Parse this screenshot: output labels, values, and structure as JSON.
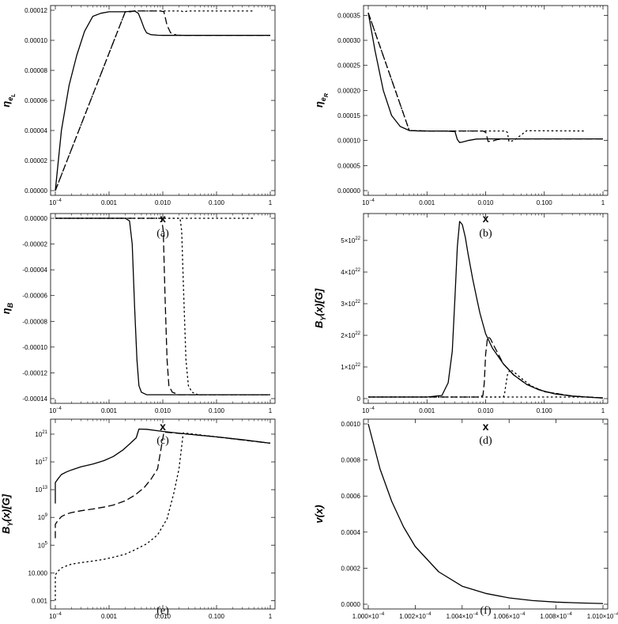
{
  "chart_data": [
    {
      "type": "line",
      "ylabel": "η",
      "ylabel_sub": "e",
      "ylabel_subsub": "L",
      "xlabel": "x",
      "caption": "(a)",
      "xscale": "log",
      "xlim": [
        0.0001,
        1
      ],
      "ylim": [
        0,
        0.00012
      ],
      "xticks": [
        {
          "v": 0.0001,
          "label": "10",
          "sup": "−4"
        },
        {
          "v": 0.001,
          "label": "0.001"
        },
        {
          "v": 0.01,
          "label": "0.010"
        },
        {
          "v": 0.1,
          "label": "0.100"
        },
        {
          "v": 1,
          "label": "1"
        }
      ],
      "yticks": [
        {
          "v": 0,
          "label": "0.00000"
        },
        {
          "v": 2e-05,
          "label": "0.00002"
        },
        {
          "v": 4e-05,
          "label": "0.00004"
        },
        {
          "v": 6e-05,
          "label": "0.00006"
        },
        {
          "v": 8e-05,
          "label": "0.00008"
        },
        {
          "v": 0.0001,
          "label": "0.00010"
        },
        {
          "v": 0.00012,
          "label": "0.00012"
        }
      ],
      "series": [
        {
          "style": "solid",
          "x": [
            0.0001,
            0.00013,
            0.00018,
            0.00025,
            0.00035,
            0.0005,
            0.0007,
            0.001,
            0.002,
            0.003,
            0.0035,
            0.004,
            0.0045,
            0.005,
            0.006,
            0.008,
            0.01,
            0.1,
            1
          ],
          "y": [
            0,
            4e-05,
            7e-05,
            9e-05,
            0.000106,
            0.000116,
            0.000118,
            0.000119,
            0.000119,
            0.0001195,
            0.000118,
            0.000113,
            0.000108,
            0.000105,
            0.0001038,
            0.0001034,
            0.0001033,
            0.0001033,
            0.0001033
          ]
        },
        {
          "style": "dashed",
          "x": [
            0.0001,
            0.002,
            0.0025,
            0.003,
            0.009,
            0.0105,
            0.012,
            0.014,
            0.018,
            0.025,
            0.1,
            1
          ],
          "y": [
            0,
            0.000119,
            0.000119,
            0.0001195,
            0.0001195,
            0.000119,
            0.00011,
            0.000105,
            0.0001035,
            0.0001033,
            0.0001033,
            0.0001033
          ]
        },
        {
          "style": "dotted",
          "x": [
            0.0001,
            0.002,
            0.003,
            0.022,
            0.024,
            0.03,
            0.5
          ],
          "y": [
            0,
            0.000119,
            0.0001195,
            0.0001195,
            0.000119,
            0.0001195,
            0.0001195
          ]
        }
      ]
    },
    {
      "type": "line",
      "ylabel": "η",
      "ylabel_sub": "e",
      "ylabel_subsub": "R",
      "xlabel": "x",
      "caption": "(b)",
      "xscale": "log",
      "xlim": [
        0.0001,
        1
      ],
      "ylim": [
        0,
        0.00036
      ],
      "xticks": [
        {
          "v": 0.0001,
          "label": "10",
          "sup": "−4"
        },
        {
          "v": 0.001,
          "label": "0.001"
        },
        {
          "v": 0.01,
          "label": "0.010"
        },
        {
          "v": 0.1,
          "label": "0.100"
        },
        {
          "v": 1,
          "label": "1"
        }
      ],
      "yticks": [
        {
          "v": 0,
          "label": "0.00000"
        },
        {
          "v": 5e-05,
          "label": "0.00005"
        },
        {
          "v": 0.0001,
          "label": "0.00010"
        },
        {
          "v": 0.00015,
          "label": "0.00015"
        },
        {
          "v": 0.0002,
          "label": "0.00020"
        },
        {
          "v": 0.00025,
          "label": "0.00025"
        },
        {
          "v": 0.0003,
          "label": "0.00030"
        },
        {
          "v": 0.00035,
          "label": "0.00035"
        }
      ],
      "series": [
        {
          "style": "solid",
          "x": [
            0.0001,
            0.00013,
            0.00018,
            0.00025,
            0.00035,
            0.0005,
            0.0007,
            0.001,
            0.002,
            0.003,
            0.0033,
            0.0036,
            0.004,
            0.005,
            0.007,
            0.01,
            0.1,
            1
          ],
          "y": [
            0.000355,
            0.00028,
            0.0002,
            0.00015,
            0.000128,
            0.00012,
            0.000119,
            0.000119,
            0.000119,
            0.000118,
            0.000102,
            9.6e-05,
            9.7e-05,
            0.0001,
            0.000103,
            0.0001033,
            0.0001033,
            0.0001033
          ]
        },
        {
          "style": "dashed",
          "x": [
            0.0001,
            0.0005,
            0.001,
            0.009,
            0.0101,
            0.011,
            0.013,
            0.016,
            0.02,
            0.1,
            1
          ],
          "y": [
            0.000355,
            0.00012,
            0.000119,
            0.000119,
            0.000116,
            9.8e-05,
            9.9e-05,
            0.000102,
            0.0001033,
            0.0001033,
            0.0001033
          ]
        },
        {
          "style": "dotted",
          "x": [
            0.0001,
            0.0005,
            0.001,
            0.022,
            0.0235,
            0.025,
            0.028,
            0.032,
            0.05,
            0.5
          ],
          "y": [
            0.000355,
            0.00012,
            0.000119,
            0.000119,
            0.000116,
            9.8e-05,
            9.9e-05,
            0.000102,
            0.0001195,
            0.000119
          ]
        }
      ]
    },
    {
      "type": "line",
      "ylabel": "η",
      "ylabel_sub": "B",
      "xlabel": "x",
      "caption": "(c)",
      "xscale": "log",
      "xlim": [
        0.0001,
        1
      ],
      "ylim": [
        -0.00014,
        0
      ],
      "xticks": [
        {
          "v": 0.0001,
          "label": "10",
          "sup": "−4"
        },
        {
          "v": 0.001,
          "label": "0.001"
        },
        {
          "v": 0.01,
          "label": "0.010"
        },
        {
          "v": 0.1,
          "label": "0.100"
        },
        {
          "v": 1,
          "label": "1"
        }
      ],
      "yticks": [
        {
          "v": 0,
          "label": "0.00000"
        },
        {
          "v": -2e-05,
          "label": "-0.00002"
        },
        {
          "v": -4e-05,
          "label": "-0.00004"
        },
        {
          "v": -6e-05,
          "label": "-0.00006"
        },
        {
          "v": -8e-05,
          "label": "-0.00008"
        },
        {
          "v": -0.0001,
          "label": "-0.00010"
        },
        {
          "v": -0.00012,
          "label": "-0.00012"
        },
        {
          "v": -0.00014,
          "label": "-0.00014"
        }
      ],
      "series": [
        {
          "style": "solid",
          "x": [
            0.0001,
            0.002,
            0.0024,
            0.0027,
            0.003,
            0.0033,
            0.0036,
            0.004,
            0.005,
            0.007,
            0.01,
            0.1,
            1
          ],
          "y": [
            0,
            0,
            -2e-06,
            -2e-05,
            -7e-05,
            -0.00011,
            -0.00013,
            -0.000135,
            -0.000137,
            -0.000137,
            -0.000137,
            -0.000137,
            -0.000137
          ]
        },
        {
          "style": "dashed",
          "x": [
            0.0001,
            0.0095,
            0.0102,
            0.011,
            0.012,
            0.013,
            0.015,
            0.02,
            1
          ],
          "y": [
            0,
            0,
            -1e-05,
            -6e-05,
            -0.00011,
            -0.00013,
            -0.000135,
            -0.000137,
            -0.000137
          ]
        },
        {
          "style": "dotted",
          "x": [
            0.0001,
            0.021,
            0.0225,
            0.0245,
            0.027,
            0.03,
            0.035,
            0.045,
            1
          ],
          "y": [
            0,
            0,
            -1e-05,
            -6e-05,
            -0.00011,
            -0.00013,
            -0.000135,
            -0.000137,
            -0.000137
          ]
        },
        {
          "style": "dotted",
          "x": [
            0.0001,
            0.5
          ],
          "y": [
            0,
            0
          ]
        }
      ]
    },
    {
      "type": "line",
      "ylabel": "B",
      "ylabel_sub": "Y",
      "ylabel_tail": "(x)[G]",
      "xlabel": "x",
      "caption": "(d)",
      "xscale": "log",
      "xlim": [
        0.0001,
        1
      ],
      "ylim": [
        0,
        5.7e+22
      ],
      "xticks": [
        {
          "v": 0.0001,
          "label": "10",
          "sup": "−4"
        },
        {
          "v": 0.001,
          "label": "0.001"
        },
        {
          "v": 0.01,
          "label": "0.010"
        },
        {
          "v": 0.1,
          "label": "0.100"
        },
        {
          "v": 1,
          "label": "1"
        }
      ],
      "yticks": [
        {
          "v": 0,
          "label": "0"
        },
        {
          "v": 1e+22,
          "label": "1×10",
          "sup": "22"
        },
        {
          "v": 2e+22,
          "label": "2×10",
          "sup": "22"
        },
        {
          "v": 3e+22,
          "label": "3×10",
          "sup": "22"
        },
        {
          "v": 4e+22,
          "label": "4×10",
          "sup": "22"
        },
        {
          "v": 5e+22,
          "label": "5×10",
          "sup": "22"
        }
      ],
      "series": [
        {
          "style": "solid",
          "x": [
            0.0001,
            0.001,
            0.0018,
            0.0023,
            0.0027,
            0.003,
            0.0033,
            0.0036,
            0.004,
            0.0045,
            0.005,
            0.006,
            0.007,
            0.008,
            0.01,
            0.013,
            0.02,
            0.03,
            0.05,
            0.08,
            0.15,
            0.3,
            0.6,
            1
          ],
          "y": [
            5e+20,
            5e+20,
            1e+21,
            5e+21,
            1.5e+22,
            3.2e+22,
            4.8e+22,
            5.6e+22,
            5.5e+22,
            5.1e+22,
            4.6e+22,
            3.8e+22,
            3.2e+22,
            2.7e+22,
            2.05e+22,
            1.6e+22,
            1.1e+22,
            7.5e+21,
            4.5e+21,
            2.8e+21,
            1.5e+21,
            8e+20,
            4e+20,
            2e+20
          ]
        },
        {
          "style": "dashed",
          "x": [
            0.0001,
            0.008,
            0.009,
            0.0095,
            0.01,
            0.0108,
            0.012,
            0.014,
            0.02,
            0.03,
            0.05,
            0.1,
            0.3,
            1
          ],
          "y": [
            5e+20,
            5e+20,
            1e+21,
            5e+21,
            1.4e+22,
            1.95e+22,
            1.9e+22,
            1.65e+22,
            1.1e+22,
            7.5e+21,
            4.5e+21,
            2.2e+21,
            8e+20,
            2e+20
          ]
        },
        {
          "style": "dotted",
          "x": [
            0.0001,
            0.02,
            0.021,
            0.022,
            0.0235,
            0.026,
            0.03,
            0.04,
            0.06,
            0.1,
            0.3,
            1
          ],
          "y": [
            5e+20,
            5e+20,
            1.5e+21,
            4e+21,
            7.5e+21,
            9.2e+21,
            8.5e+21,
            6.5e+21,
            4e+21,
            2.2e+21,
            8e+20,
            2e+20
          ]
        },
        {
          "style": "dotted",
          "x": [
            0.0001,
            0.5
          ],
          "y": [
            5e+20,
            5e+20
          ]
        }
      ]
    },
    {
      "type": "line",
      "ylabel": "B",
      "ylabel_sub": "Y",
      "ylabel_tail": "(x)[G]",
      "xlabel": "x",
      "caption": "(e)",
      "xscale": "log",
      "yscale": "log",
      "xlim": [
        0.0001,
        1
      ],
      "ylim": [
        0.0003,
        3e+22
      ],
      "xticks": [
        {
          "v": 0.0001,
          "label": "10",
          "sup": "−4"
        },
        {
          "v": 0.001,
          "label": "0.001"
        },
        {
          "v": 0.01,
          "label": "0.010"
        },
        {
          "v": 0.1,
          "label": "0.100"
        },
        {
          "v": 1,
          "label": "1"
        }
      ],
      "yticks": [
        {
          "v": 0.001,
          "label": "0.001"
        },
        {
          "v": 10,
          "label": "10.000"
        },
        {
          "v": 100000.0,
          "label": "10",
          "sup": "5"
        },
        {
          "v": 1000000000.0,
          "label": "10",
          "sup": "9"
        },
        {
          "v": 10000000000000.0,
          "label": "10",
          "sup": "13"
        },
        {
          "v": 1e+17,
          "label": "10",
          "sup": "17"
        },
        {
          "v": 1e+21,
          "label": "10",
          "sup": "21"
        }
      ],
      "series": [
        {
          "style": "solid",
          "x": [
            0.0001,
            0.0001,
            0.00011,
            0.00013,
            0.00016,
            0.0002,
            0.0003,
            0.0005,
            0.0008,
            0.0012,
            0.0018,
            0.0025,
            0.0032,
            0.0036,
            0.005,
            0.01,
            0.03,
            0.1,
            0.3,
            1
          ],
          "y": [
            100000000000.0,
            100000000000000.0,
            300000000000000.0,
            1500000000000000.0,
            3500000000000000.0,
            7000000000000000.0,
            2e+16,
            5e+16,
            1.5e+17,
            6e+17,
            5e+18,
            5e+19,
            3e+20,
            5.5e+21,
            5e+21,
            2.5e+21,
            1e+21,
            4e+20,
            1.6e+20,
            5e+19
          ]
        },
        {
          "style": "dashed",
          "x": [
            0.0001,
            0.0001,
            0.00011,
            0.00013,
            0.00016,
            0.0002,
            0.0003,
            0.0005,
            0.0008,
            0.0012,
            0.002,
            0.003,
            0.0045,
            0.006,
            0.008,
            0.0105,
            0.03,
            0.1,
            1
          ],
          "y": [
            1000000.0,
            100000000.0,
            300000000.0,
            1300000000.0,
            3000000000.0,
            5000000000.0,
            9000000000.0,
            16000000000.0,
            30000000000.0,
            60000000000.0,
            250000000000.0,
            1500000000000.0,
            20000000000000.0,
            300000000000000.0,
            1e+16,
            2e+21,
            1e+21,
            4e+20,
            5e+19
          ]
        },
        {
          "style": "dotted",
          "x": [
            0.0001,
            0.0001,
            0.00011,
            0.00013,
            0.00016,
            0.0002,
            0.0003,
            0.0005,
            0.0008,
            0.0012,
            0.002,
            0.003,
            0.005,
            0.008,
            0.012,
            0.016,
            0.02,
            0.024,
            0.1,
            1
          ],
          "y": [
            0.001,
            5,
            15,
            50,
            100,
            180,
            300,
            500,
            900,
            1800,
            5000,
            20000.0,
            150000.0,
            3000000.0,
            600000000.0,
            3000000000000.0,
            1e+16,
            1.5e+21,
            4e+20,
            5e+19
          ]
        }
      ]
    },
    {
      "type": "line",
      "ylabel": "v(x)",
      "xlabel": "x",
      "caption": "(f)",
      "xlim": [
        0.0001,
        0.000101
      ],
      "ylim": [
        0,
        0.001
      ],
      "xticks": [
        {
          "v": 0.0001,
          "label": "1.000×10",
          "sup": "−4"
        },
        {
          "v": 0.0001002,
          "label": "1.002×10",
          "sup": "−4"
        },
        {
          "v": 0.0001004,
          "label": "1.004×10",
          "sup": "−4"
        },
        {
          "v": 0.0001006,
          "label": "1.006×10",
          "sup": "−4"
        },
        {
          "v": 0.0001008,
          "label": "1.008×10",
          "sup": "−4"
        },
        {
          "v": 0.000101,
          "label": "1.010×10",
          "sup": "−4"
        }
      ],
      "yticks": [
        {
          "v": 0,
          "label": "0.0000"
        },
        {
          "v": 0.0002,
          "label": "0.0002"
        },
        {
          "v": 0.0004,
          "label": "0.0004"
        },
        {
          "v": 0.0006,
          "label": "0.0006"
        },
        {
          "v": 0.0008,
          "label": "0.0008"
        },
        {
          "v": 0.001,
          "label": "0.0010"
        }
      ],
      "series": [
        {
          "style": "solid",
          "x": [
            0.0001,
            0.00010005,
            0.0001001,
            0.00010015,
            0.0001002,
            0.0001003,
            0.0001004,
            0.0001005,
            0.0001006,
            0.0001007,
            0.0001008,
            0.0001009,
            0.000101
          ],
          "y": [
            0.001,
            0.00075,
            0.00057,
            0.00043,
            0.00032,
            0.00018,
            0.0001,
            6e-05,
            3.5e-05,
            2e-05,
            1.2e-05,
            7e-06,
            4e-06
          ]
        }
      ]
    }
  ]
}
